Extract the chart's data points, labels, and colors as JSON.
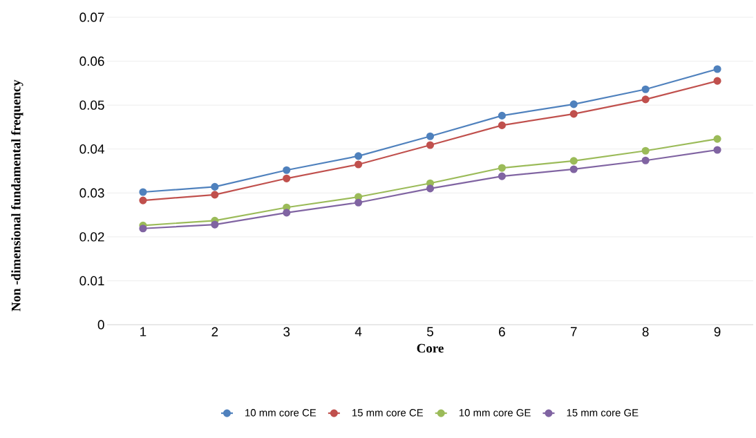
{
  "chart_data": {
    "type": "line",
    "xlabel": "Core",
    "ylabel": "Non -dimensional fundamental frequency",
    "categories": [
      "1",
      "2",
      "3",
      "4",
      "5",
      "6",
      "7",
      "8",
      "9"
    ],
    "series": [
      {
        "name": "10 mm core CE",
        "color": "#4f81bd",
        "values": [
          0.0302,
          0.0314,
          0.0352,
          0.0384,
          0.0429,
          0.0476,
          0.0502,
          0.0536,
          0.0582
        ]
      },
      {
        "name": "15 mm core CE",
        "color": "#c0504d",
        "values": [
          0.0283,
          0.0296,
          0.0333,
          0.0365,
          0.0409,
          0.0454,
          0.048,
          0.0513,
          0.0555
        ]
      },
      {
        "name": "10 mm core GE",
        "color": "#9bbb59",
        "values": [
          0.0226,
          0.0237,
          0.0267,
          0.0291,
          0.0322,
          0.0357,
          0.0373,
          0.0396,
          0.0423
        ]
      },
      {
        "name": "15 mm core GE",
        "color": "#8064a2",
        "values": [
          0.0219,
          0.0228,
          0.0255,
          0.0278,
          0.031,
          0.0338,
          0.0354,
          0.0374,
          0.0398
        ]
      }
    ],
    "ylim": [
      0,
      0.07
    ],
    "yticks": [
      0,
      0.01,
      0.02,
      0.03,
      0.04,
      0.05,
      0.06,
      0.07
    ],
    "grid": "y",
    "legend": "bottom",
    "marker": "circle",
    "line_style": "solid"
  }
}
